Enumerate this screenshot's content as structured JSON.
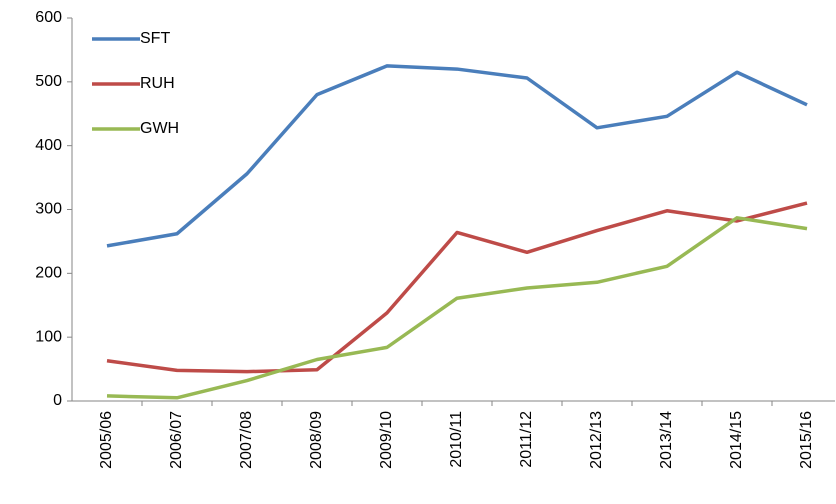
{
  "chart_data": {
    "type": "line",
    "categories": [
      "2005/06",
      "2006/07",
      "2007/08",
      "2008/09",
      "2009/10",
      "2010/11",
      "2011/12",
      "2012/13",
      "2013/14",
      "2014/15",
      "2015/16"
    ],
    "series": [
      {
        "name": "SFT",
        "color": "#4a7ebb",
        "values": [
          243,
          262,
          356,
          480,
          525,
          520,
          506,
          428,
          446,
          515,
          464
        ]
      },
      {
        "name": "RUH",
        "color": "#be4b48",
        "values": [
          63,
          48,
          46,
          49,
          138,
          264,
          233,
          267,
          298,
          282,
          310
        ]
      },
      {
        "name": "GWH",
        "color": "#98b954",
        "values": [
          8,
          5,
          32,
          65,
          84,
          161,
          177,
          186,
          211,
          287,
          270
        ]
      }
    ],
    "ylim": [
      0,
      600
    ],
    "yticks": [
      0,
      100,
      200,
      300,
      400,
      500,
      600
    ],
    "legend": "top-left"
  }
}
